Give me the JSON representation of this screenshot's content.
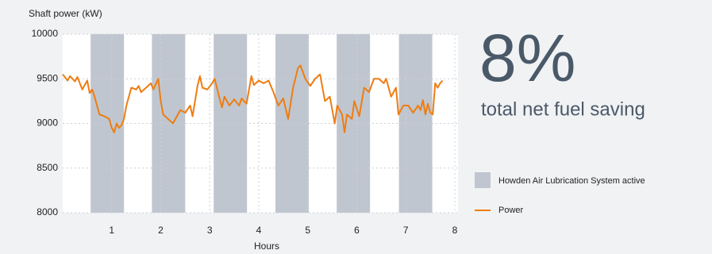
{
  "chart_data": {
    "type": "line",
    "y_axis_label": "Shaft power (kW)",
    "x_axis_label": "Hours",
    "headline": {
      "value": "8%",
      "label": "total net fuel saving"
    },
    "xlim": [
      0,
      8
    ],
    "xticks": [
      1,
      2,
      3,
      4,
      5,
      6,
      7,
      8
    ],
    "ylim": [
      8000,
      10000
    ],
    "yticks": [
      8000,
      8500,
      9000,
      9500,
      10000
    ],
    "grid": true,
    "shaded_regions": {
      "name": "Howden Air Lubrication System active",
      "color": "#c0c6cf",
      "ranges": [
        [
          0.57,
          1.25
        ],
        [
          1.82,
          2.5
        ],
        [
          3.08,
          3.76
        ],
        [
          4.34,
          5.02
        ],
        [
          5.59,
          6.27
        ],
        [
          6.86,
          7.54
        ]
      ]
    },
    "series": [
      {
        "name": "Power",
        "color": "#ee7d12",
        "x": [
          0,
          0.1,
          0.15,
          0.25,
          0.3,
          0.4,
          0.5,
          0.55,
          0.6,
          0.65,
          0.7,
          0.75,
          0.85,
          0.95,
          1.0,
          1.05,
          1.1,
          1.15,
          1.2,
          1.25,
          1.3,
          1.4,
          1.5,
          1.55,
          1.6,
          1.7,
          1.8,
          1.85,
          1.95,
          2.0,
          2.05,
          2.15,
          2.25,
          2.3,
          2.4,
          2.5,
          2.6,
          2.65,
          2.75,
          2.8,
          2.85,
          2.95,
          3.05,
          3.1,
          3.2,
          3.25,
          3.3,
          3.4,
          3.5,
          3.6,
          3.65,
          3.75,
          3.85,
          3.9,
          4.0,
          4.1,
          4.2,
          4.3,
          4.4,
          4.5,
          4.6,
          4.7,
          4.8,
          4.85,
          4.95,
          5.05,
          5.15,
          5.25,
          5.35,
          5.45,
          5.55,
          5.6,
          5.7,
          5.75,
          5.8,
          5.9,
          5.95,
          6.05,
          6.15,
          6.25,
          6.35,
          6.45,
          6.55,
          6.6,
          6.7,
          6.8,
          6.85,
          6.95,
          7.05,
          7.15,
          7.25,
          7.3,
          7.35,
          7.4,
          7.45,
          7.5,
          7.55,
          7.6,
          7.65,
          7.7,
          7.75
        ],
        "values": [
          9550,
          9480,
          9530,
          9470,
          9520,
          9380,
          9480,
          9340,
          9380,
          9300,
          9200,
          9100,
          9080,
          9050,
          8950,
          8900,
          9000,
          8950,
          8980,
          9050,
          9200,
          9400,
          9380,
          9420,
          9350,
          9400,
          9450,
          9380,
          9500,
          9250,
          9100,
          9050,
          9000,
          9050,
          9150,
          9120,
          9200,
          9080,
          9420,
          9530,
          9400,
          9380,
          9450,
          9500,
          9280,
          9180,
          9300,
          9200,
          9270,
          9200,
          9280,
          9220,
          9530,
          9430,
          9480,
          9450,
          9480,
          9350,
          9200,
          9280,
          9050,
          9400,
          9620,
          9650,
          9500,
          9420,
          9500,
          9550,
          9250,
          9300,
          9000,
          9200,
          9100,
          8900,
          9100,
          9050,
          9250,
          9080,
          9400,
          9350,
          9500,
          9500,
          9450,
          9500,
          9300,
          9400,
          9100,
          9200,
          9200,
          9120,
          9200,
          9150,
          9260,
          9100,
          9220,
          9120,
          9100,
          9450,
          9400,
          9450,
          9480
        ]
      }
    ]
  }
}
